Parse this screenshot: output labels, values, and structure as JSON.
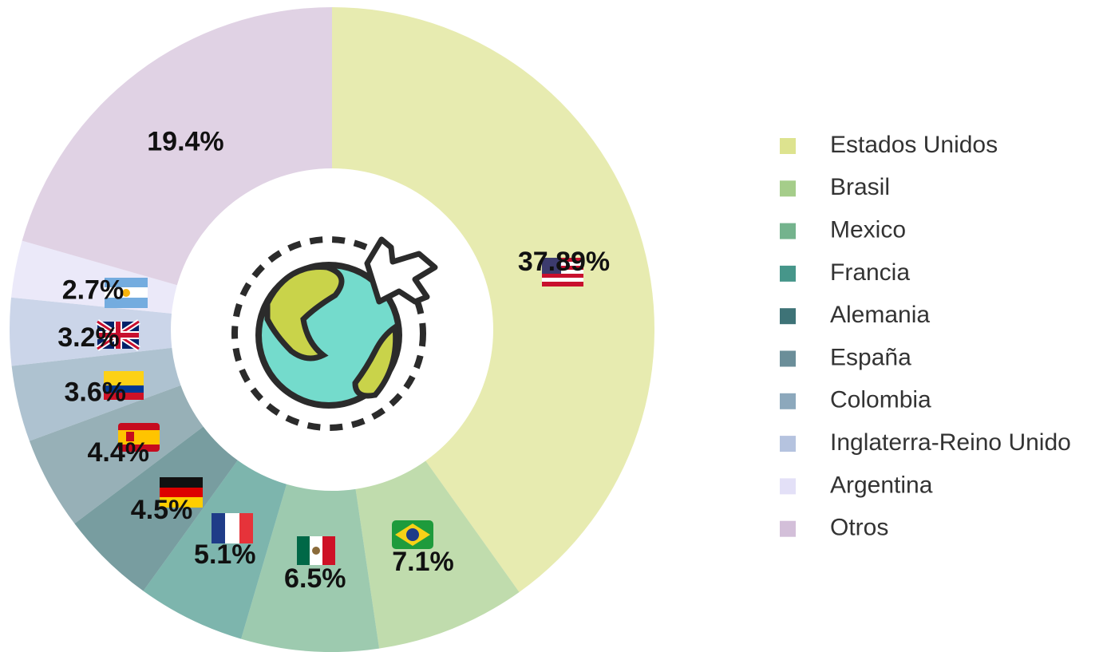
{
  "chart_data": {
    "type": "donut",
    "categories": [
      "Estados Unidos",
      "Brasil",
      "Mexico",
      "Francia",
      "Alemania",
      "España",
      "Colombia",
      "Inglaterra-Reino Unido",
      "Argentina",
      "Otros"
    ],
    "values": [
      37.89,
      7.1,
      6.5,
      5.1,
      4.5,
      4.4,
      3.6,
      3.2,
      2.7,
      19.4
    ],
    "value_labels": [
      "37.89%",
      "7.1%",
      "6.5%",
      "5.1%",
      "4.5%",
      "4.4%",
      "3.6%",
      "3.2%",
      "2.7%",
      "19.4%"
    ],
    "colors": [
      "#dde38f",
      "#a5cd8a",
      "#74b38d",
      "#46968a",
      "#3e7377",
      "#6b8e99",
      "#8ca8bc",
      "#b5c3df",
      "#e3e0f7",
      "#d3bfd9"
    ],
    "legend": "right"
  }
}
